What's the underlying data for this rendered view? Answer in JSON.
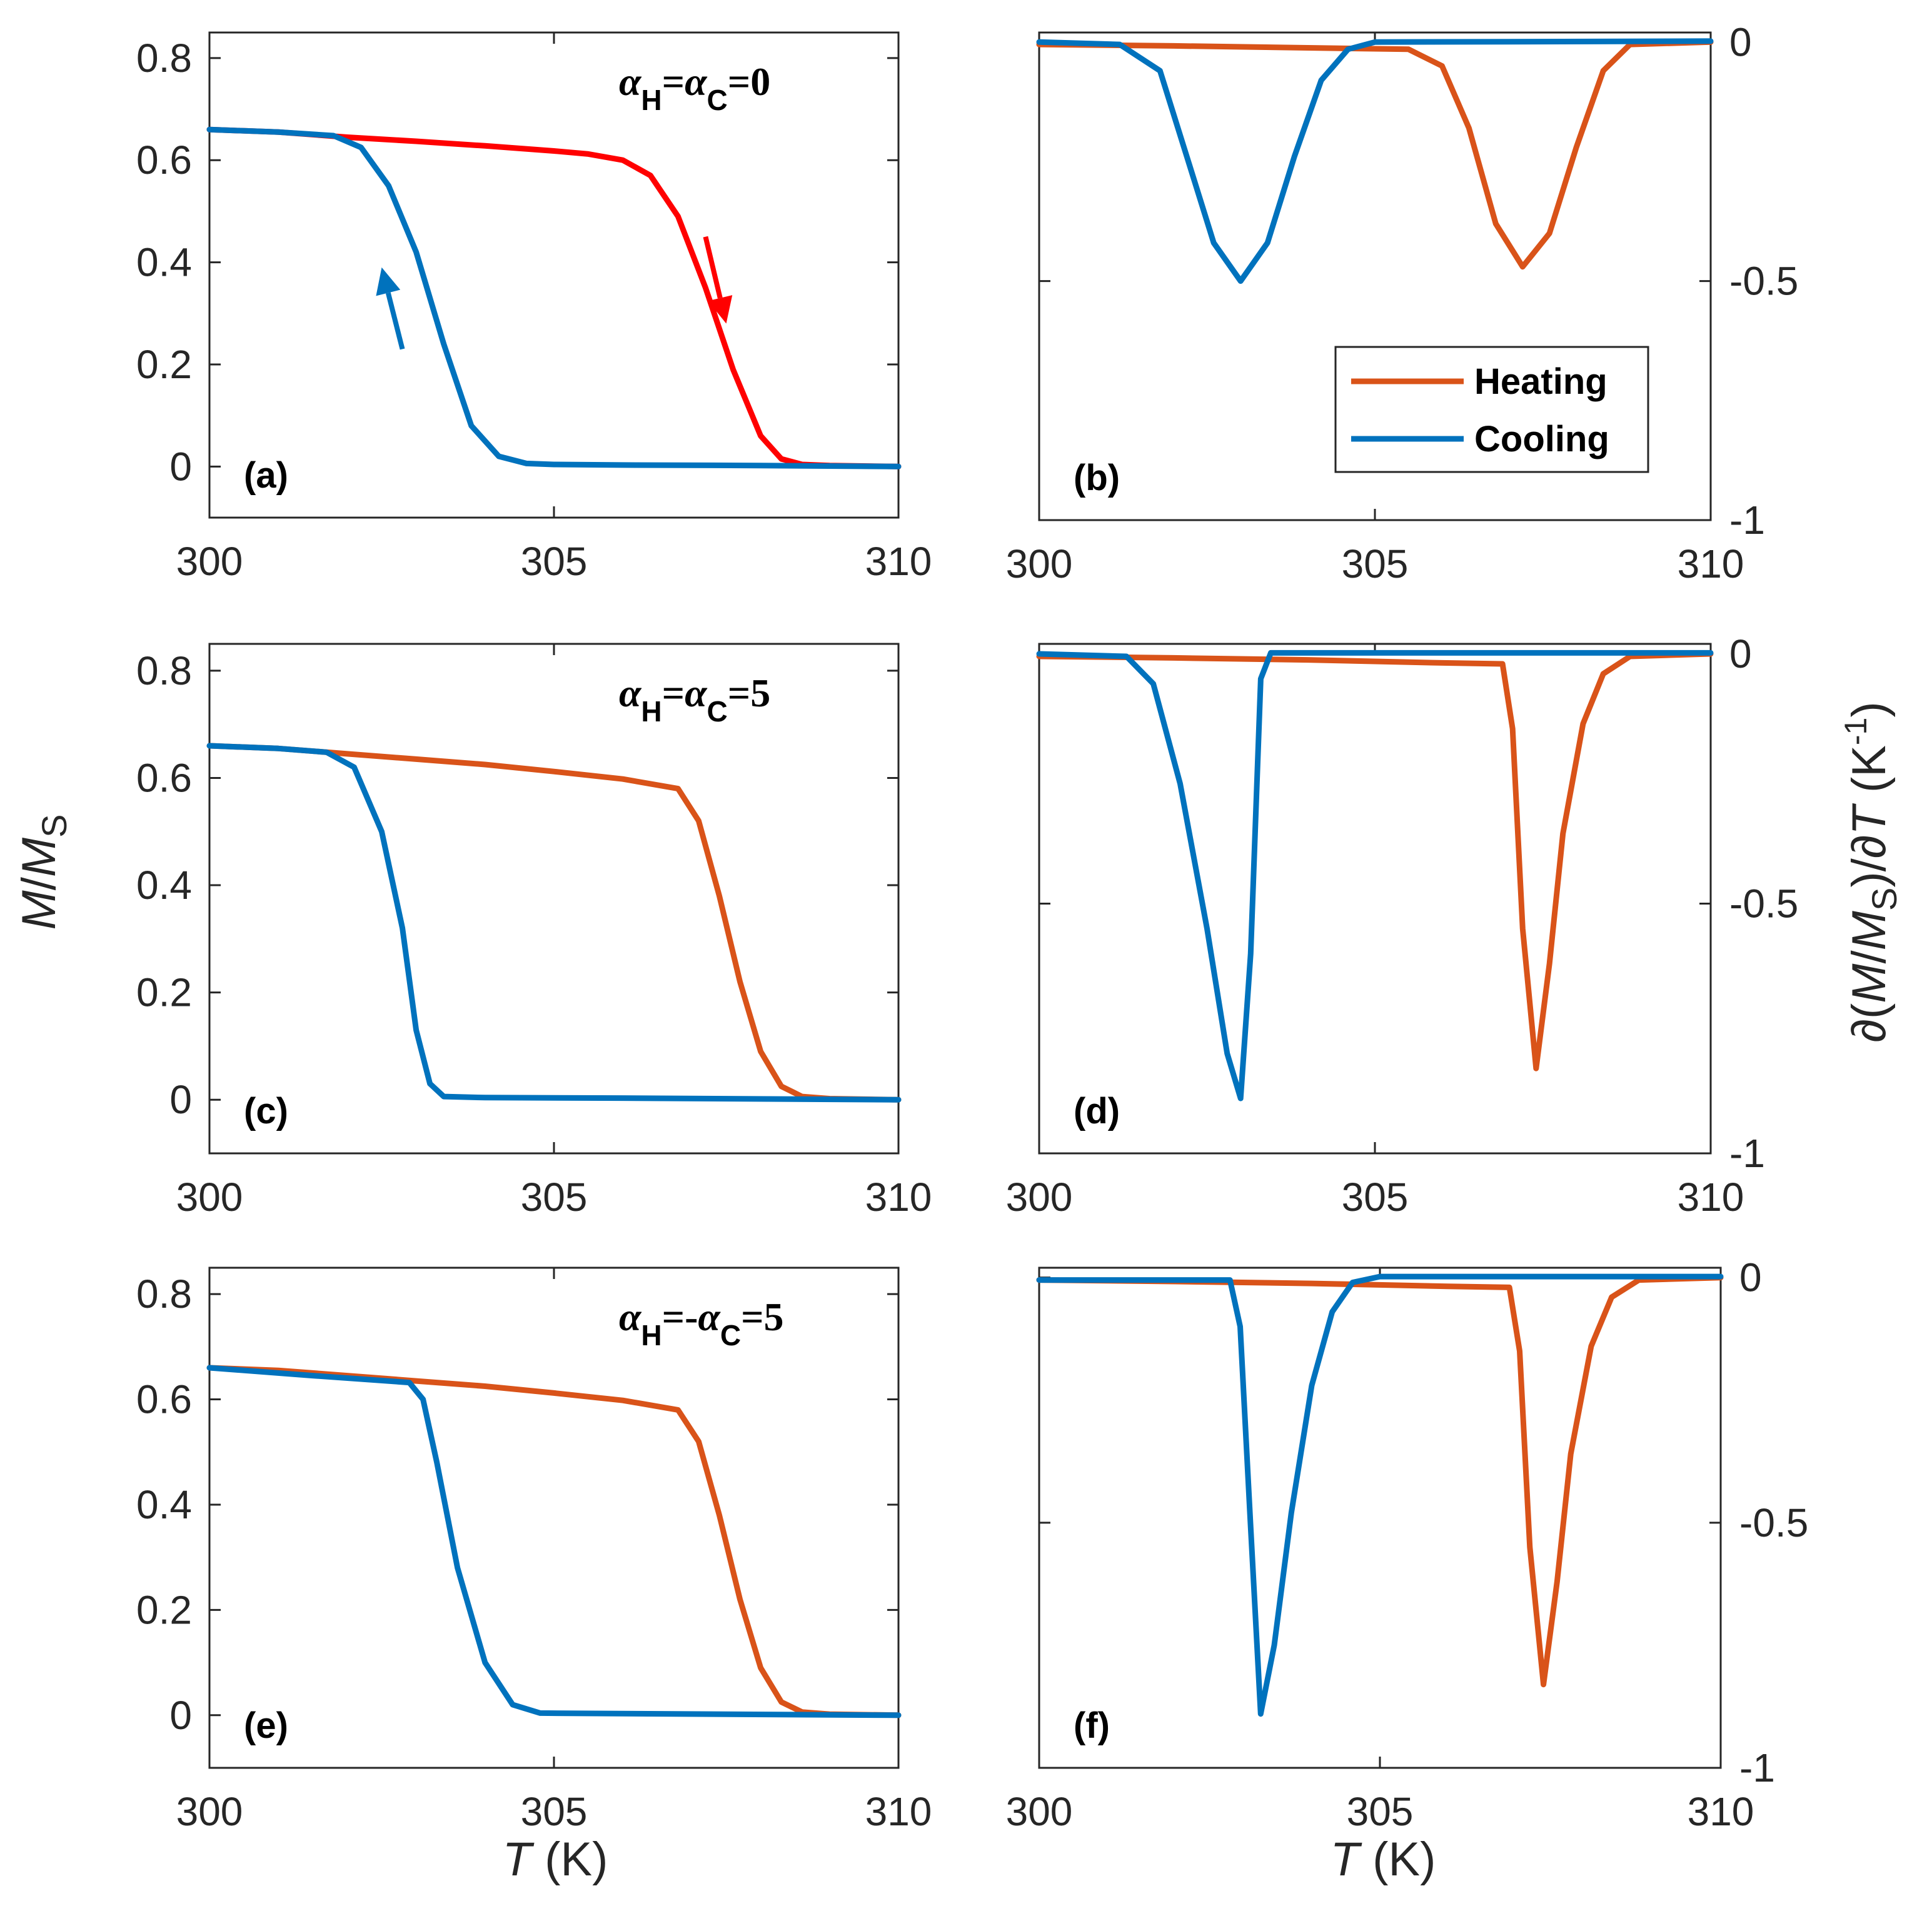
{
  "chart_data": [
    {
      "id": "a",
      "type": "line",
      "panel_label": "(a)",
      "annotation": {
        "alpha": "α",
        "h": "H",
        "c": "C",
        "rel": "=",
        "rhs": "=0",
        "minus": ""
      },
      "xlim": [
        300,
        310
      ],
      "ylim": [
        -0.1,
        0.85
      ],
      "xticks": [
        "300",
        "305",
        "310"
      ],
      "yticks": [
        "0",
        "0.2",
        "0.4",
        "0.6",
        "0.8"
      ],
      "xlabel": "",
      "ylabel": "",
      "series": [
        {
          "name": "Heating",
          "color": "#ff0000",
          "x": [
            300,
            301,
            302,
            303,
            304,
            305,
            305.5,
            306,
            306.4,
            306.8,
            307.2,
            307.6,
            308,
            308.3,
            308.6,
            309,
            310
          ],
          "y": [
            0.66,
            0.655,
            0.645,
            0.637,
            0.628,
            0.618,
            0.612,
            0.6,
            0.57,
            0.49,
            0.35,
            0.19,
            0.06,
            0.015,
            0.004,
            0.002,
            0.0
          ]
        },
        {
          "name": "Cooling",
          "color": "#0072bd",
          "x": [
            300,
            301,
            301.8,
            302.2,
            302.6,
            303,
            303.4,
            303.8,
            304.2,
            304.6,
            305,
            306,
            308,
            310
          ],
          "y": [
            0.66,
            0.655,
            0.648,
            0.625,
            0.55,
            0.42,
            0.24,
            0.08,
            0.02,
            0.006,
            0.004,
            0.003,
            0.002,
            0.0
          ]
        }
      ],
      "arrows": [
        {
          "color": "#ff0000",
          "from": [
            307.2,
            0.45
          ],
          "to": [
            307.5,
            0.28
          ]
        },
        {
          "color": "#0072bd",
          "from": [
            302.8,
            0.23
          ],
          "to": [
            302.5,
            0.39
          ]
        }
      ]
    },
    {
      "id": "b",
      "type": "line",
      "panel_label": "(b)",
      "xlim": [
        300,
        310
      ],
      "ylim": [
        -1,
        0.02
      ],
      "xticks": [
        "300",
        "305",
        "310"
      ],
      "yticks": [
        "0",
        "-0.5",
        "-1"
      ],
      "legend": {
        "position": "center-right",
        "entries": [
          "Heating",
          "Cooling"
        ]
      },
      "series": [
        {
          "name": "Heating",
          "color": "#d95319",
          "x": [
            300,
            302,
            304,
            305.5,
            306,
            306.4,
            306.8,
            307.2,
            307.6,
            308,
            308.4,
            308.8,
            310
          ],
          "y": [
            -0.005,
            -0.008,
            -0.012,
            -0.015,
            -0.05,
            -0.18,
            -0.38,
            -0.47,
            -0.4,
            -0.22,
            -0.06,
            -0.005,
            0.0
          ]
        },
        {
          "name": "Cooling",
          "color": "#0072bd",
          "x": [
            300,
            301.2,
            301.8,
            302.2,
            302.6,
            303,
            303.4,
            303.8,
            304.2,
            304.6,
            305,
            310
          ],
          "y": [
            0.0,
            -0.005,
            -0.06,
            -0.24,
            -0.42,
            -0.5,
            -0.42,
            -0.24,
            -0.08,
            -0.015,
            0.0,
            0.002
          ]
        }
      ]
    },
    {
      "id": "c",
      "type": "line",
      "panel_label": "(c)",
      "annotation": {
        "alpha": "α",
        "h": "H",
        "c": "C",
        "rel": "=",
        "rhs": "=5",
        "minus": ""
      },
      "xlim": [
        300,
        310
      ],
      "ylim": [
        -0.1,
        0.85
      ],
      "xticks": [
        "300",
        "305",
        "310"
      ],
      "yticks": [
        "0",
        "0.2",
        "0.4",
        "0.6",
        "0.8"
      ],
      "series": [
        {
          "name": "Heating",
          "color": "#d95319",
          "x": [
            300,
            301,
            302,
            303,
            304,
            305,
            306,
            306.8,
            307.1,
            307.4,
            307.7,
            308,
            308.3,
            308.6,
            309,
            310
          ],
          "y": [
            0.66,
            0.655,
            0.645,
            0.635,
            0.625,
            0.612,
            0.598,
            0.58,
            0.52,
            0.38,
            0.22,
            0.09,
            0.025,
            0.006,
            0.002,
            0.0
          ]
        },
        {
          "name": "Cooling",
          "color": "#0072bd",
          "x": [
            300,
            301,
            301.7,
            302.1,
            302.5,
            302.8,
            303,
            303.2,
            303.4,
            304,
            306,
            310
          ],
          "y": [
            0.66,
            0.655,
            0.648,
            0.62,
            0.5,
            0.32,
            0.13,
            0.03,
            0.006,
            0.004,
            0.003,
            0.0
          ]
        }
      ]
    },
    {
      "id": "d",
      "type": "line",
      "panel_label": "(d)",
      "xlim": [
        300,
        310
      ],
      "ylim": [
        -1,
        0.02
      ],
      "xticks": [
        "300",
        "305",
        "310"
      ],
      "yticks": [
        "0",
        "-0.5",
        "-1"
      ],
      "ylabel": "∂(M/M_S)/∂T (K^-1)",
      "series": [
        {
          "name": "Heating",
          "color": "#d95319",
          "x": [
            300,
            302,
            304,
            306,
            306.9,
            307.05,
            307.2,
            307.4,
            307.6,
            307.8,
            308.1,
            308.4,
            308.8,
            310
          ],
          "y": [
            -0.005,
            -0.008,
            -0.012,
            -0.018,
            -0.02,
            -0.15,
            -0.55,
            -0.83,
            -0.62,
            -0.36,
            -0.14,
            -0.04,
            -0.005,
            0.0
          ]
        },
        {
          "name": "Cooling",
          "color": "#0072bd",
          "x": [
            300,
            301.3,
            301.7,
            302.1,
            302.5,
            302.8,
            303,
            303.15,
            303.3,
            303.45,
            310
          ],
          "y": [
            0.0,
            -0.005,
            -0.06,
            -0.26,
            -0.55,
            -0.8,
            -0.89,
            -0.6,
            -0.05,
            0.002,
            0.002
          ]
        }
      ]
    },
    {
      "id": "e",
      "type": "line",
      "panel_label": "(e)",
      "annotation": {
        "alpha": "α",
        "h": "H",
        "c": "C",
        "rel": "=",
        "rhs": "=5",
        "minus": "-"
      },
      "xlim": [
        300,
        310
      ],
      "ylim": [
        -0.1,
        0.85
      ],
      "xticks": [
        "300",
        "305",
        "310"
      ],
      "yticks": [
        "0",
        "0.2",
        "0.4",
        "0.6",
        "0.8"
      ],
      "xlabel": "T (K)",
      "series": [
        {
          "name": "Heating",
          "color": "#d95319",
          "x": [
            300,
            301,
            302,
            303,
            304,
            305,
            306,
            306.8,
            307.1,
            307.4,
            307.7,
            308,
            308.3,
            308.6,
            309,
            310
          ],
          "y": [
            0.66,
            0.655,
            0.645,
            0.635,
            0.625,
            0.612,
            0.598,
            0.58,
            0.52,
            0.38,
            0.22,
            0.09,
            0.025,
            0.006,
            0.002,
            0.0
          ]
        },
        {
          "name": "Cooling",
          "color": "#0072bd",
          "x": [
            300,
            301.5,
            302.9,
            303.1,
            303.3,
            303.6,
            304,
            304.4,
            304.8,
            306,
            310
          ],
          "y": [
            0.66,
            0.645,
            0.632,
            0.6,
            0.48,
            0.28,
            0.1,
            0.02,
            0.004,
            0.003,
            0.0
          ]
        }
      ]
    },
    {
      "id": "f",
      "type": "line",
      "panel_label": "(f)",
      "xlim": [
        300,
        310
      ],
      "ylim": [
        -1,
        0.02
      ],
      "xticks": [
        "300",
        "305",
        "310"
      ],
      "yticks": [
        "0",
        "-0.5",
        "-1"
      ],
      "xlabel": "T (K)",
      "series": [
        {
          "name": "Heating",
          "color": "#d95319",
          "x": [
            300,
            302,
            304,
            306,
            306.9,
            307.05,
            307.2,
            307.4,
            307.6,
            307.8,
            308.1,
            308.4,
            308.8,
            310
          ],
          "y": [
            -0.005,
            -0.008,
            -0.012,
            -0.018,
            -0.02,
            -0.15,
            -0.55,
            -0.83,
            -0.62,
            -0.36,
            -0.14,
            -0.04,
            -0.005,
            0.0
          ]
        },
        {
          "name": "Cooling",
          "color": "#0072bd",
          "x": [
            300,
            302.8,
            302.95,
            303.1,
            303.25,
            303.45,
            303.7,
            304,
            304.3,
            304.6,
            305,
            310
          ],
          "y": [
            -0.005,
            -0.005,
            -0.1,
            -0.5,
            -0.89,
            -0.75,
            -0.48,
            -0.22,
            -0.07,
            -0.01,
            0.002,
            0.002
          ]
        }
      ]
    }
  ],
  "labels": {
    "ylabel_left_M": "M",
    "ylabel_left_slash": "/",
    "ylabel_left_S": "S",
    "ylabel_right_prefix": "∂(",
    "ylabel_right_mid": ")/∂",
    "ylabel_right_T": "T",
    "ylabel_right_unit": " (K",
    "ylabel_right_exp": "-1",
    "ylabel_right_close": ")",
    "xlabel_T": "T",
    "xlabel_unit": " (K)"
  }
}
